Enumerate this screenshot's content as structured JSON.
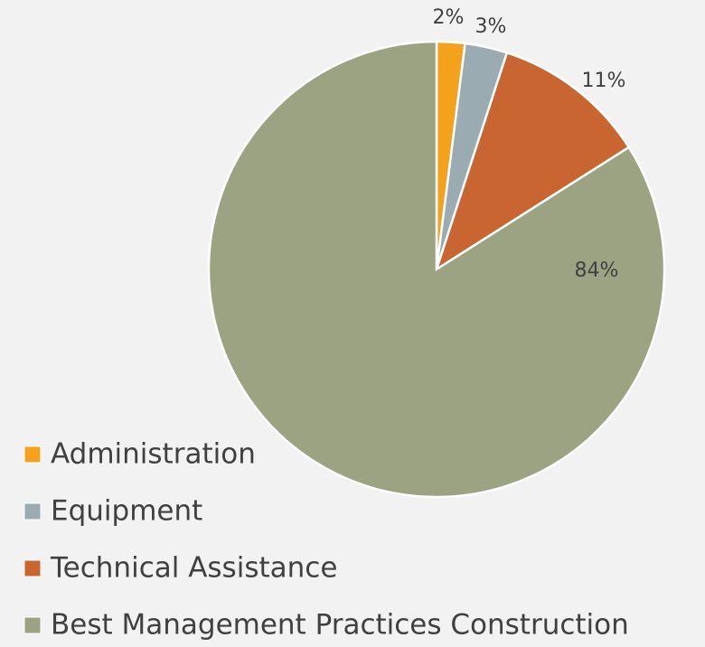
{
  "chart_data": {
    "type": "pie",
    "categories": [
      "Administration",
      "Equipment",
      "Technical Assistance",
      "Best Management Practices Construction"
    ],
    "values": [
      2,
      3,
      11,
      84
    ],
    "value_labels": [
      "2%",
      "3%",
      "11%",
      "84%"
    ],
    "colors": [
      "#f4a21c",
      "#9aabb1",
      "#c96530",
      "#9ca383"
    ],
    "legend": "bottom-left"
  }
}
